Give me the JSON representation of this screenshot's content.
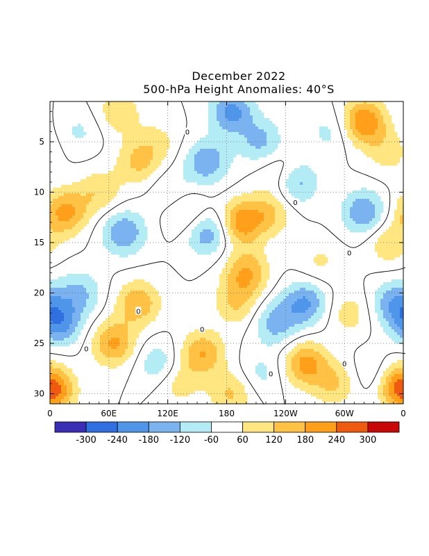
{
  "chart_data": {
    "type": "heatmap",
    "title": "December 2022",
    "subtitle": "500-hPa Height Anomalies: 40°S",
    "x_ticks": [
      "0",
      "60E",
      "120E",
      "180",
      "120W",
      "60W",
      "0"
    ],
    "y_ticks": [
      "5",
      "10",
      "15",
      "20",
      "25",
      "30"
    ],
    "ylim": [
      1,
      31
    ],
    "contour_label": "0",
    "colorbar": {
      "labels": [
        "-300",
        "-240",
        "-180",
        "-120",
        "-60",
        "60",
        "120",
        "180",
        "240",
        "300"
      ],
      "colors": [
        "#3a2fb4",
        "#2f6fe0",
        "#4f96ea",
        "#7ab3f0",
        "#b4ecf6",
        "#ffffff",
        "#ffe680",
        "#ffc244",
        "#ff9f1a",
        "#f05a10",
        "#c80808"
      ]
    },
    "anomalies": [
      {
        "lon": 30,
        "day": 4,
        "v": -70
      },
      {
        "lon": 70,
        "day": 2,
        "v": 110
      },
      {
        "lon": 110,
        "day": 5,
        "v": 70
      },
      {
        "lon": 90,
        "day": 7,
        "v": 130
      },
      {
        "lon": 125,
        "day": 10,
        "v": -80
      },
      {
        "lon": 160,
        "day": 7,
        "v": -170
      },
      {
        "lon": 185,
        "day": 2,
        "v": -200
      },
      {
        "lon": 215,
        "day": 5,
        "v": -140
      },
      {
        "lon": 250,
        "day": 9,
        "v": -170
      },
      {
        "lon": 235,
        "day": 8,
        "v": 100
      },
      {
        "lon": 285,
        "day": 4,
        "v": -80
      },
      {
        "lon": 320,
        "day": 3,
        "v": 240
      },
      {
        "lon": 345,
        "day": 6,
        "v": 90
      },
      {
        "lon": 15,
        "day": 12,
        "v": 200
      },
      {
        "lon": 50,
        "day": 10,
        "v": 110
      },
      {
        "lon": 75,
        "day": 14,
        "v": -180
      },
      {
        "lon": 140,
        "day": 12,
        "v": 120
      },
      {
        "lon": 160,
        "day": 14,
        "v": -180
      },
      {
        "lon": 195,
        "day": 13,
        "v": 220
      },
      {
        "lon": 225,
        "day": 12,
        "v": 120
      },
      {
        "lon": 275,
        "day": 17,
        "v": 70
      },
      {
        "lon": 320,
        "day": 12,
        "v": -180
      },
      {
        "lon": 345,
        "day": 15,
        "v": 110
      },
      {
        "lon": 30,
        "day": 20,
        "v": -130
      },
      {
        "lon": 90,
        "day": 21,
        "v": 170
      },
      {
        "lon": 200,
        "day": 18,
        "v": 180
      },
      {
        "lon": 190,
        "day": 21,
        "v": 120
      },
      {
        "lon": 260,
        "day": 21,
        "v": -190
      },
      {
        "lon": 305,
        "day": 22,
        "v": 90
      },
      {
        "lon": 350,
        "day": 21,
        "v": -160
      },
      {
        "lon": 10,
        "day": 23,
        "v": -200
      },
      {
        "lon": 65,
        "day": 25,
        "v": 190
      },
      {
        "lon": 110,
        "day": 27,
        "v": -110
      },
      {
        "lon": 155,
        "day": 26,
        "v": 180
      },
      {
        "lon": 130,
        "day": 29,
        "v": 90
      },
      {
        "lon": 230,
        "day": 23,
        "v": -150
      },
      {
        "lon": 260,
        "day": 27,
        "v": 200
      },
      {
        "lon": 215,
        "day": 28,
        "v": -80
      },
      {
        "lon": 290,
        "day": 29,
        "v": 120
      },
      {
        "lon": 330,
        "day": 28,
        "v": -70
      },
      {
        "lon": 355,
        "day": 29,
        "v": 180
      },
      {
        "lon": 5,
        "day": 30,
        "v": 150
      },
      {
        "lon": 185,
        "day": 30,
        "v": 130
      }
    ]
  }
}
